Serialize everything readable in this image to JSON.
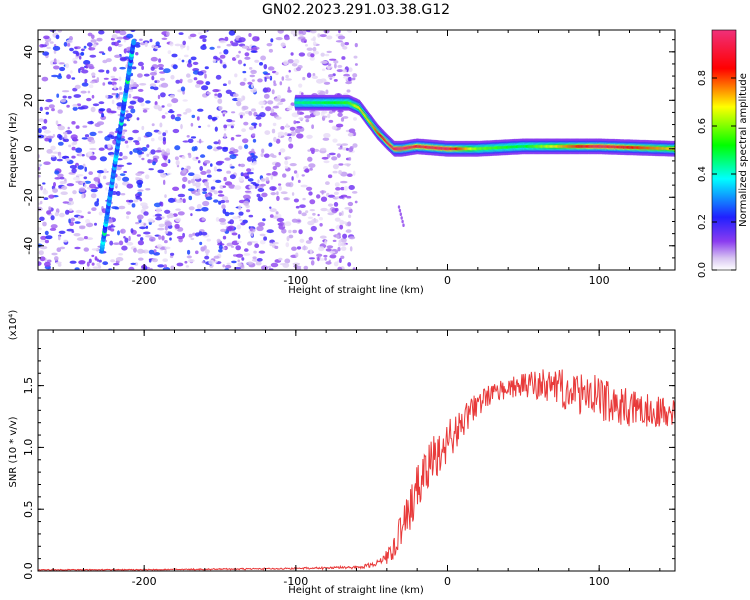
{
  "title": "GN02.2023.291.03.38.G12",
  "chart_data": [
    {
      "type": "heatmap",
      "xlabel": "Height of straight line (km)",
      "ylabel": "Frequency (Hz)",
      "xlim": [
        -270,
        150
      ],
      "ylim": [
        -50,
        49
      ],
      "x_ticks": [
        -200,
        -100,
        0,
        100
      ],
      "y_ticks": [
        -40,
        -20,
        0,
        20,
        40
      ],
      "colorbar": {
        "label": "Normalized spectral amplitude",
        "range": [
          0,
          1
        ],
        "ticks": [
          "0.0",
          "0.2",
          "0.4",
          "0.6",
          "0.8"
        ],
        "tick_values": [
          0,
          0.2,
          0.4,
          0.6,
          0.8
        ]
      },
      "noise_region_x": [
        -270,
        -60
      ],
      "diagonal_streak": {
        "x": [
          -228,
          -207
        ],
        "y": [
          -42,
          44
        ]
      },
      "ridge": {
        "x": [
          -100,
          -65,
          -58,
          -52,
          -46,
          -40,
          -35,
          -30,
          -20,
          0,
          20,
          50,
          100,
          150
        ],
        "y": [
          19,
          19,
          17,
          12,
          7,
          3,
          0,
          0,
          1,
          0,
          0,
          1,
          1,
          0
        ],
        "amplitude": [
          0.45,
          0.55,
          0.7,
          0.7,
          0.8,
          0.9,
          0.95,
          1.0,
          0.9,
          0.95,
          0.6,
          0.5,
          0.95,
          0.7
        ]
      }
    },
    {
      "type": "line",
      "xlabel": "Height of straight line (km)",
      "ylabel": "SNR (10 * v/v)",
      "y_multiplier": "(x10⁴)",
      "xlim": [
        -270,
        150
      ],
      "ylim": [
        0,
        1.95
      ],
      "x_ticks": [
        -200,
        -100,
        0,
        100
      ],
      "y_ticks": [
        "0.0",
        "0.5",
        "1.0",
        "1.5"
      ],
      "y_tick_values": [
        0,
        0.5,
        1.0,
        1.5
      ],
      "color": "#e83a3a",
      "series": [
        {
          "x": [
            -270,
            -200,
            -100,
            -60,
            -50,
            -45,
            -40,
            -35,
            -30,
            -25,
            -20,
            -15,
            -10,
            -5,
            0,
            5,
            10,
            15,
            20,
            25,
            30,
            35,
            40,
            50,
            60,
            70,
            80,
            90,
            100,
            110,
            120,
            130,
            140,
            150
          ],
          "values": [
            0.01,
            0.01,
            0.02,
            0.03,
            0.05,
            0.07,
            0.12,
            0.2,
            0.35,
            0.5,
            0.65,
            0.8,
            0.9,
            0.98,
            1.05,
            1.12,
            1.2,
            1.28,
            1.35,
            1.4,
            1.44,
            1.46,
            1.48,
            1.5,
            1.5,
            1.5,
            1.45,
            1.42,
            1.4,
            1.35,
            1.32,
            1.3,
            1.3,
            1.28
          ],
          "fluctuation": [
            0,
            0,
            0.005,
            0.01,
            0.02,
            0.03,
            0.06,
            0.1,
            0.14,
            0.18,
            0.2,
            0.2,
            0.2,
            0.18,
            0.17,
            0.15,
            0.13,
            0.11,
            0.1,
            0.09,
            0.08,
            0.08,
            0.08,
            0.1,
            0.13,
            0.15,
            0.16,
            0.17,
            0.18,
            0.16,
            0.15,
            0.14,
            0.13,
            0.12
          ]
        }
      ]
    }
  ]
}
